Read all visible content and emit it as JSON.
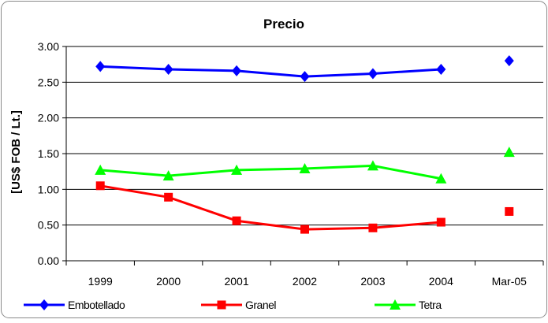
{
  "chart_data": {
    "type": "line",
    "title": "Precio",
    "ylabel": "[US$ FOB / Lt.]",
    "xlabel": "",
    "categories": [
      "1999",
      "2000",
      "2001",
      "2002",
      "2003",
      "2004",
      "Mar-05"
    ],
    "ylim": [
      0,
      3
    ],
    "yticks": [
      "0.00",
      "0.50",
      "1.00",
      "1.50",
      "2.00",
      "2.50",
      "3.00"
    ],
    "grid": true,
    "legend_position": "bottom",
    "series": [
      {
        "name": "Embotellado",
        "color": "#0000ff",
        "marker": "diamond",
        "values": [
          2.72,
          2.68,
          2.66,
          2.58,
          2.62,
          2.68,
          2.8
        ],
        "connected_points": 6
      },
      {
        "name": "Granel",
        "color": "#ff0000",
        "marker": "square",
        "values": [
          1.05,
          0.89,
          0.56,
          0.44,
          0.46,
          0.54,
          0.69
        ],
        "connected_points": 6
      },
      {
        "name": "Tetra",
        "color": "#00ff00",
        "marker": "triangle",
        "values": [
          1.27,
          1.19,
          1.27,
          1.29,
          1.33,
          1.15,
          1.52
        ],
        "connected_points": 6
      }
    ]
  }
}
